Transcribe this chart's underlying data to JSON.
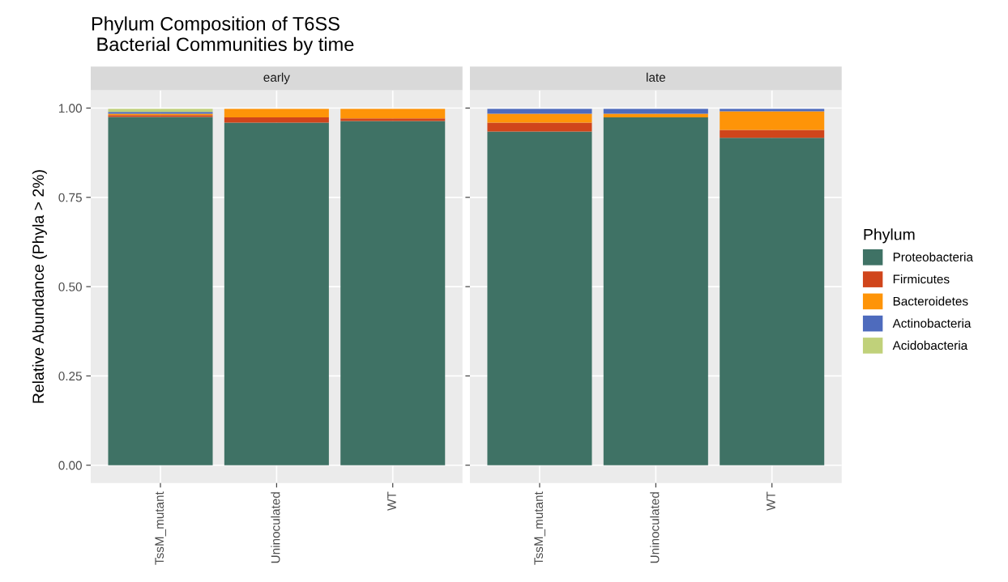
{
  "chart_data": [
    {
      "type": "bar",
      "title": "Phylum Composition of T6SS\n Bacterial Communities by time",
      "subtitle": "early",
      "ylabel": "Relative Abundance (Phyla > 2%)",
      "legend_title": "Phylum",
      "categories": [
        "TssM_mutant",
        "Uninoculated",
        "WT"
      ],
      "stacked": true,
      "ylim": [
        -0.05,
        1.05
      ],
      "yticks": [
        {
          "value": 0,
          "label": "0.00"
        },
        {
          "value": 0.25,
          "label": "0.25"
        },
        {
          "value": 0.5,
          "label": "0.50"
        },
        {
          "value": 0.75,
          "label": "0.75"
        },
        {
          "value": 1,
          "label": "1.00"
        }
      ],
      "grid": true,
      "legend": "right",
      "series": [
        {
          "name": "Proteobacteria",
          "color": "#3f7265",
          "values": [
            0.975,
            0.959,
            0.964
          ]
        },
        {
          "name": "Firmicutes",
          "color": "#d0451b",
          "values": [
            0.005,
            0.015,
            0.007
          ]
        },
        {
          "name": "Bacteroidetes",
          "color": "#fe9408",
          "values": [
            0.004,
            0.024,
            0.027
          ]
        },
        {
          "name": "Actinobacteria",
          "color": "#4e6bbd",
          "values": [
            0.005,
            0,
            0
          ]
        },
        {
          "name": "Acidobacteria",
          "color": "#c0d17a",
          "values": [
            0.009,
            0,
            0
          ]
        }
      ]
    },
    {
      "type": "bar",
      "subtitle": "late",
      "categories": [
        "TssM_mutant",
        "Uninoculated",
        "WT"
      ],
      "stacked": true,
      "ylim": [
        -0.05,
        1.05
      ],
      "yticks": [
        {
          "value": 0,
          "label": null
        },
        {
          "value": 0.25,
          "label": null
        },
        {
          "value": 0.5,
          "label": null
        },
        {
          "value": 0.75,
          "label": null
        },
        {
          "value": 1,
          "label": null
        }
      ],
      "grid": true,
      "tick_labels": "x",
      "series": [
        {
          "color": "#3f7265",
          "values": [
            0.934,
            0.974,
            0.917
          ]
        },
        {
          "color": "#d0451b",
          "values": [
            0.025,
            0,
            0.022
          ]
        },
        {
          "color": "#fe9408",
          "values": [
            0.025,
            0.01,
            0.052
          ]
        },
        {
          "color": "#4e6bbd",
          "values": [
            0.014,
            0.014,
            0.007
          ]
        },
        {
          "color": "#c0d17a",
          "values": [
            0,
            0,
            0
          ]
        }
      ]
    }
  ]
}
